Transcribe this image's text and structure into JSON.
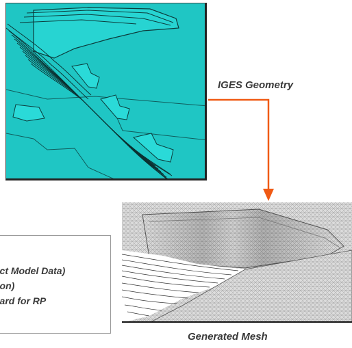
{
  "labels": {
    "iges_geometry": "IGES Geometry",
    "generated_mesh": "Generated Mesh"
  },
  "text_box": {
    "lines": [
      "uct Model Data)",
      "tion)",
      "dard for RP"
    ]
  },
  "colors": {
    "iges_background": "#1fc6c4",
    "arrow": "#f05a14",
    "mesh_surface": "#d8d8d8"
  },
  "icons": {
    "arrow": "down-arrow-icon"
  }
}
